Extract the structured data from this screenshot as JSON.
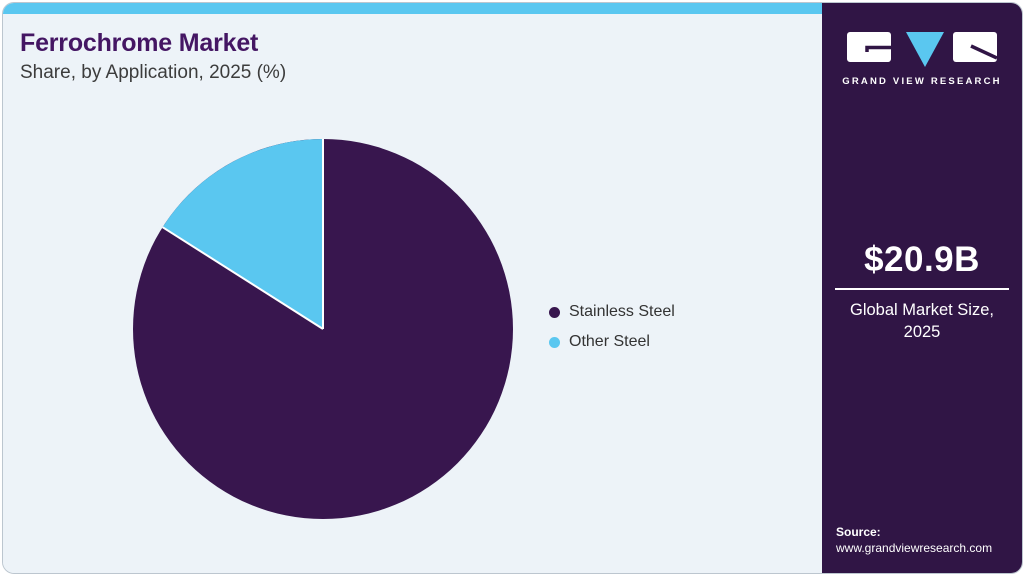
{
  "colors": {
    "accent_blue": "#5AC7F0",
    "pie_purple": "#38164E",
    "sidebar_purple": "#301545",
    "title_purple": "#441663",
    "card_bg": "#EDF3F8",
    "card_border": "#BCC6CF",
    "slice_separator": "#FFFFFF"
  },
  "header": {
    "title": "Ferrochrome Market",
    "subtitle": "Share, by Application, 2025 (%)"
  },
  "chart_data": {
    "type": "pie",
    "title": "Ferrochrome Market Share, by Application, 2025 (%)",
    "labels": [
      "Stainless Steel",
      "Other Steel"
    ],
    "values": [
      84,
      16
    ],
    "unit": "%",
    "colors": [
      "#38164E",
      "#5AC7F0"
    ],
    "legend_position": "right-middle",
    "start_angle": "12 o'clock; Other Steel slice sweeps counterclockwise from top"
  },
  "sidebar": {
    "logo_text": "GRAND VIEW RESEARCH",
    "market_size_value": "$20.9B",
    "market_size_label": "Global Market Size, 2025",
    "source_label": "Source:",
    "source_url": "www.grandviewresearch.com"
  }
}
